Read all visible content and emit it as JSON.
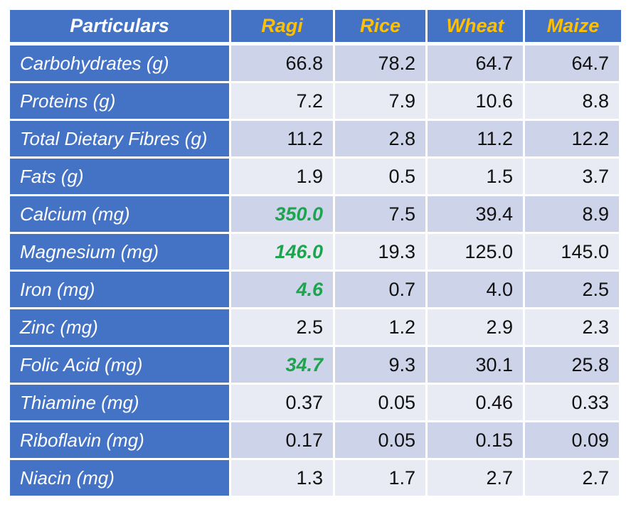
{
  "colors": {
    "header_background": "#4472C4",
    "row_label_background": "#4472C4",
    "band_dark": "#CDD3E8",
    "band_light": "#E9EBF4",
    "header_text": "#FFFFFF",
    "grain_header_text": "#FFC000",
    "value_text": "#111111",
    "highlight_text": "#1CA54E",
    "grid_line": "#FFFFFF"
  },
  "table": {
    "columns": [
      {
        "label": "Particulars"
      },
      {
        "label": "Ragi"
      },
      {
        "label": "Rice"
      },
      {
        "label": "Wheat"
      },
      {
        "label": "Maize"
      }
    ],
    "rows": [
      {
        "particular": "Carbohydrates (g)",
        "ragi": "66.8",
        "rice": "78.2",
        "wheat": "64.7",
        "maize": "64.7",
        "ragi_highlight": false
      },
      {
        "particular": "Proteins (g)",
        "ragi": "7.2",
        "rice": "7.9",
        "wheat": "10.6",
        "maize": "8.8",
        "ragi_highlight": false
      },
      {
        "particular": "Total Dietary Fibres (g)",
        "ragi": "11.2",
        "rice": "2.8",
        "wheat": "11.2",
        "maize": "12.2",
        "ragi_highlight": false
      },
      {
        "particular": "Fats (g)",
        "ragi": "1.9",
        "rice": "0.5",
        "wheat": "1.5",
        "maize": "3.7",
        "ragi_highlight": false
      },
      {
        "particular": "Calcium (mg)",
        "ragi": "350.0",
        "rice": "7.5",
        "wheat": "39.4",
        "maize": "8.9",
        "ragi_highlight": true
      },
      {
        "particular": "Magnesium (mg)",
        "ragi": "146.0",
        "rice": "19.3",
        "wheat": "125.0",
        "maize": "145.0",
        "ragi_highlight": true
      },
      {
        "particular": "Iron (mg)",
        "ragi": "4.6",
        "rice": "0.7",
        "wheat": "4.0",
        "maize": "2.5",
        "ragi_highlight": true
      },
      {
        "particular": "Zinc (mg)",
        "ragi": "2.5",
        "rice": "1.2",
        "wheat": "2.9",
        "maize": "2.3",
        "ragi_highlight": false
      },
      {
        "particular": "Folic Acid (mg)",
        "ragi": "34.7",
        "rice": "9.3",
        "wheat": "30.1",
        "maize": "25.8",
        "ragi_highlight": true
      },
      {
        "particular": "Thiamine (mg)",
        "ragi": "0.37",
        "rice": "0.05",
        "wheat": "0.46",
        "maize": "0.33",
        "ragi_highlight": false
      },
      {
        "particular": "Riboflavin (mg)",
        "ragi": "0.17",
        "rice": "0.05",
        "wheat": "0.15",
        "maize": "0.09",
        "ragi_highlight": false
      },
      {
        "particular": "Niacin (mg)",
        "ragi": "1.3",
        "rice": "1.7",
        "wheat": "2.7",
        "maize": "2.7",
        "ragi_highlight": false
      }
    ]
  },
  "chart_data": {
    "type": "table",
    "columns": [
      "Particulars",
      "Ragi",
      "Rice",
      "Wheat",
      "Maize"
    ],
    "rows": [
      [
        "Carbohydrates (g)",
        66.8,
        78.2,
        64.7,
        64.7
      ],
      [
        "Proteins (g)",
        7.2,
        7.9,
        10.6,
        8.8
      ],
      [
        "Total Dietary Fibres (g)",
        11.2,
        2.8,
        11.2,
        12.2
      ],
      [
        "Fats (g)",
        1.9,
        0.5,
        1.5,
        3.7
      ],
      [
        "Calcium (mg)",
        350.0,
        7.5,
        39.4,
        8.9
      ],
      [
        "Magnesium (mg)",
        146.0,
        19.3,
        125.0,
        145.0
      ],
      [
        "Iron (mg)",
        4.6,
        0.7,
        4.0,
        2.5
      ],
      [
        "Zinc (mg)",
        2.5,
        1.2,
        2.9,
        2.3
      ],
      [
        "Folic Acid (mg)",
        34.7,
        9.3,
        30.1,
        25.8
      ],
      [
        "Thiamine (mg)",
        0.37,
        0.05,
        0.46,
        0.33
      ],
      [
        "Riboflavin (mg)",
        0.17,
        0.05,
        0.15,
        0.09
      ],
      [
        "Niacin (mg)",
        1.3,
        1.7,
        2.7,
        2.7
      ]
    ],
    "highlighted_cells": [
      {
        "row": "Calcium (mg)",
        "column": "Ragi",
        "value": 350.0
      },
      {
        "row": "Magnesium (mg)",
        "column": "Ragi",
        "value": 146.0
      },
      {
        "row": "Iron (mg)",
        "column": "Ragi",
        "value": 4.6
      },
      {
        "row": "Folic Acid (mg)",
        "column": "Ragi",
        "value": 34.7
      }
    ]
  }
}
